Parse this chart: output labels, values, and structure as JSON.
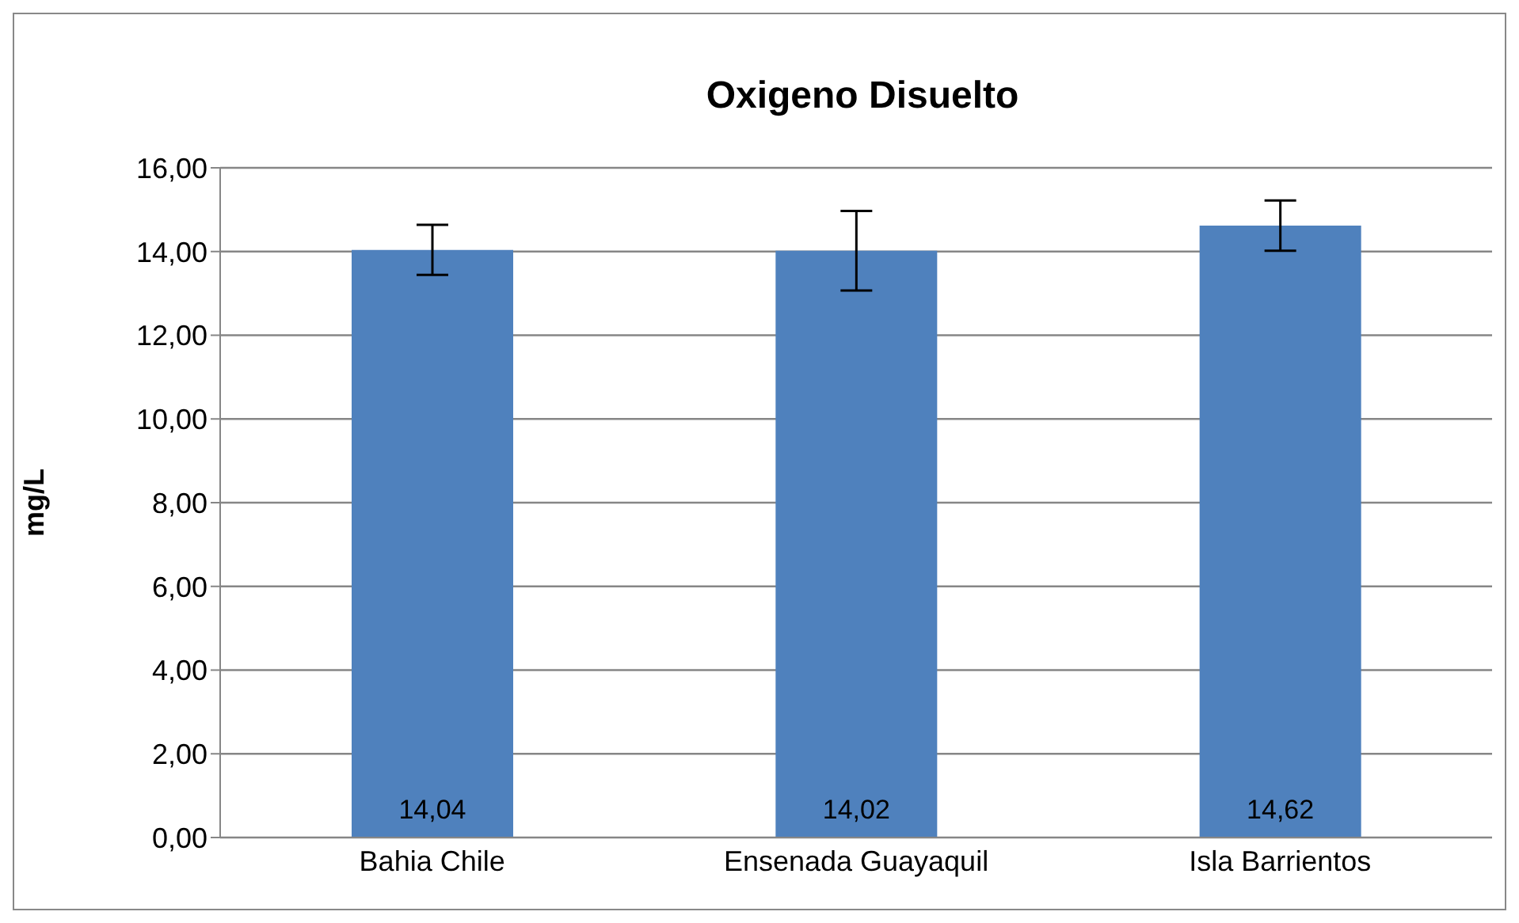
{
  "chart_data": {
    "type": "bar",
    "title": "Oxigeno Disuelto",
    "ylabel": "mg/L",
    "categories": [
      "Bahia Chile",
      "Ensenada Guayaquil",
      "Isla Barrientos"
    ],
    "series": [
      {
        "color": "#4f81bd",
        "values": [
          14.04,
          14.02,
          14.62
        ],
        "errors": [
          0.6,
          0.95,
          0.6
        ],
        "value_labels": [
          "14,04",
          "14,02",
          "14,62"
        ]
      }
    ],
    "ylim": [
      0,
      16
    ],
    "yticks": [
      {
        "value": 0,
        "label": "0,00"
      },
      {
        "value": 2,
        "label": "2,00"
      },
      {
        "value": 4,
        "label": "4,00"
      },
      {
        "value": 6,
        "label": "6,00"
      },
      {
        "value": 8,
        "label": "8,00"
      },
      {
        "value": 10,
        "label": "10,00"
      },
      {
        "value": 12,
        "label": "12,00"
      },
      {
        "value": 14,
        "label": "14,00"
      },
      {
        "value": 16,
        "label": "16,00"
      }
    ],
    "grid": "y",
    "legend": false
  }
}
